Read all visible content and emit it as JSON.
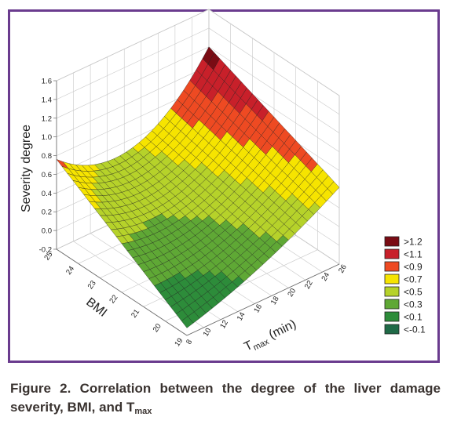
{
  "chart_data": {
    "type": "surface3d",
    "title": "",
    "zlabel": "Severity degree",
    "xlabel_main": "T",
    "xlabel_sub": "max",
    "xlabel_rest": " (min)",
    "ylabel": "BMI",
    "z_ticks": [
      "1.6",
      "1.4",
      "1.2",
      "1.0",
      "0.8",
      "0.6",
      "0.4",
      "0.2",
      "0.0",
      "-0.2"
    ],
    "z_tick_values": [
      1.6,
      1.4,
      1.2,
      1.0,
      0.8,
      0.6,
      0.4,
      0.2,
      0.0,
      -0.2
    ],
    "x_ticks": [
      "8",
      "10",
      "12",
      "14",
      "16",
      "18",
      "20",
      "22",
      "24",
      "26"
    ],
    "x_tick_values": [
      8,
      10,
      12,
      14,
      16,
      18,
      20,
      22,
      24,
      26
    ],
    "y_ticks": [
      "25",
      "24",
      "23",
      "22",
      "21",
      "20",
      "19"
    ],
    "y_tick_values": [
      25,
      24,
      23,
      22,
      21,
      20,
      19
    ],
    "xlim": [
      8,
      26
    ],
    "ylim": [
      19,
      25
    ],
    "zlim": [
      -0.2,
      1.6
    ],
    "surface_corners": {
      "tmax_8_bmi_19": -0.12,
      "tmax_26_bmi_19": 0.62,
      "tmax_8_bmi_25": 0.76,
      "tmax_26_bmi_25": 1.2
    },
    "legend": {
      "position": "right",
      "items": [
        {
          "label": ">1.2",
          "color": "#7a0c14"
        },
        {
          "label": "<1.1",
          "color": "#c8202a"
        },
        {
          "label": "<0.9",
          "color": "#ee4a22"
        },
        {
          "label": "<0.7",
          "color": "#f6e400"
        },
        {
          "label": "<0.5",
          "color": "#b6d22a"
        },
        {
          "label": "<0.3",
          "color": "#5fa835"
        },
        {
          "label": "<0.1",
          "color": "#2d8c3a"
        },
        {
          "label": "<-0.1",
          "color": "#1f6a47"
        }
      ]
    },
    "grid": true
  },
  "caption": {
    "prefix": "Figure 2. Correlation between the degree of the liver damage severity, BMI, and T",
    "sub": "max"
  },
  "colors": {
    "frame": "#6a3b8e",
    "caption_text": "#3a3330"
  }
}
